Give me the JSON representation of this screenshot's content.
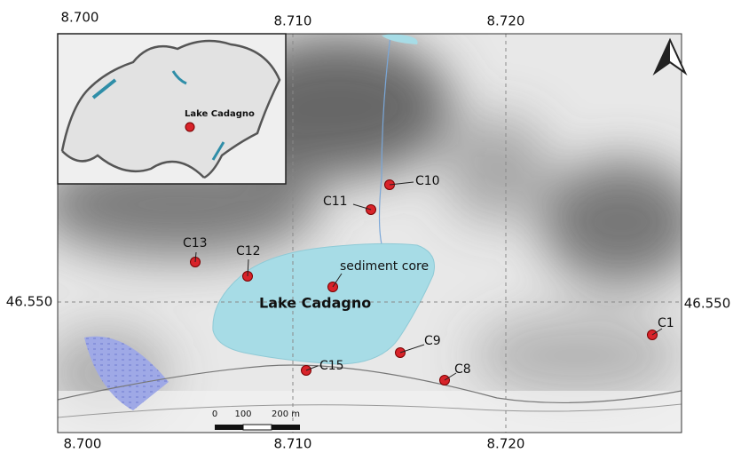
{
  "grid_labels": {
    "top": [
      "8.700",
      "8.710",
      "8.720"
    ],
    "bottom": [
      "8.700",
      "8.710",
      "8.720"
    ],
    "left": "46.550",
    "right": "46.550"
  },
  "lake_label": "Lake Cadagno",
  "sediment_core_label": "sediment core",
  "stations": [
    "C1",
    "C8",
    "C9",
    "C10",
    "C11",
    "C12",
    "C13",
    "C15"
  ],
  "inset": {
    "label": "Lake Cadagno"
  },
  "scale_bar": {
    "labels": [
      "0",
      "100",
      "200 m"
    ]
  }
}
